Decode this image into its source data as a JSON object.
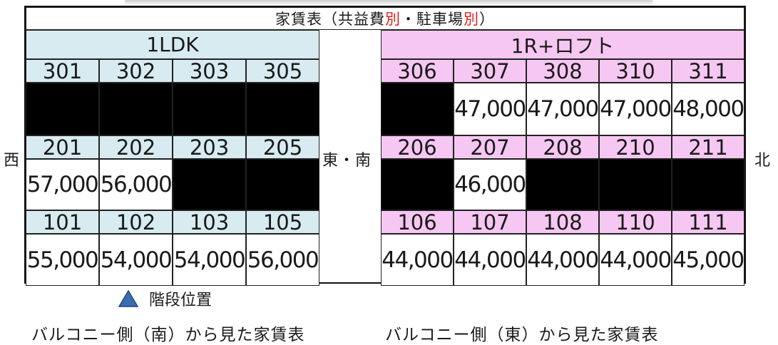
{
  "title": {
    "prefix": "家賃表（共益費",
    "red1": "別",
    "middle": "・駐車場",
    "red2": "別",
    "suffix": "）"
  },
  "sections": {
    "left": "1LDK",
    "right": "1R+ロフト"
  },
  "floors": [
    {
      "left": [
        {
          "room": "301",
          "price": null
        },
        {
          "room": "302",
          "price": null
        },
        {
          "room": "303",
          "price": null
        },
        {
          "room": "305",
          "price": null
        }
      ],
      "right": [
        {
          "room": "306",
          "price": null
        },
        {
          "room": "307",
          "price": "47,000"
        },
        {
          "room": "308",
          "price": "47,000"
        },
        {
          "room": "310",
          "price": "47,000"
        },
        {
          "room": "311",
          "price": "48,000"
        }
      ]
    },
    {
      "left": [
        {
          "room": "201",
          "price": "57,000"
        },
        {
          "room": "202",
          "price": "56,000"
        },
        {
          "room": "203",
          "price": null
        },
        {
          "room": "205",
          "price": null
        }
      ],
      "right": [
        {
          "room": "206",
          "price": null
        },
        {
          "room": "207",
          "price": "46,000"
        },
        {
          "room": "208",
          "price": null
        },
        {
          "room": "210",
          "price": null
        },
        {
          "room": "211",
          "price": null
        }
      ]
    },
    {
      "left": [
        {
          "room": "101",
          "price": "55,000"
        },
        {
          "room": "102",
          "price": "54,000"
        },
        {
          "room": "103",
          "price": "54,000"
        },
        {
          "room": "105",
          "price": "56,000"
        }
      ],
      "right": [
        {
          "room": "106",
          "price": "44,000"
        },
        {
          "room": "107",
          "price": "44,000"
        },
        {
          "room": "108",
          "price": "44,000"
        },
        {
          "room": "110",
          "price": "44,000"
        },
        {
          "room": "111",
          "price": "45,000"
        }
      ]
    }
  ],
  "directions": {
    "west": "西",
    "east_south": "東・南",
    "north": "北"
  },
  "legend": {
    "stairs_label": "階段位置",
    "stairs_icon": "triangle-marker-icon",
    "stairs_color": "#3a6db0"
  },
  "captions": {
    "south": "バルコニー側（南）から見た家賃表",
    "east": "バルコニー側（東）から見た家賃表"
  },
  "colors": {
    "left_header": "#d7ebf1",
    "right_header": "#f6c7f2",
    "occupied": "#000000",
    "accent_red": "#e0201a"
  }
}
